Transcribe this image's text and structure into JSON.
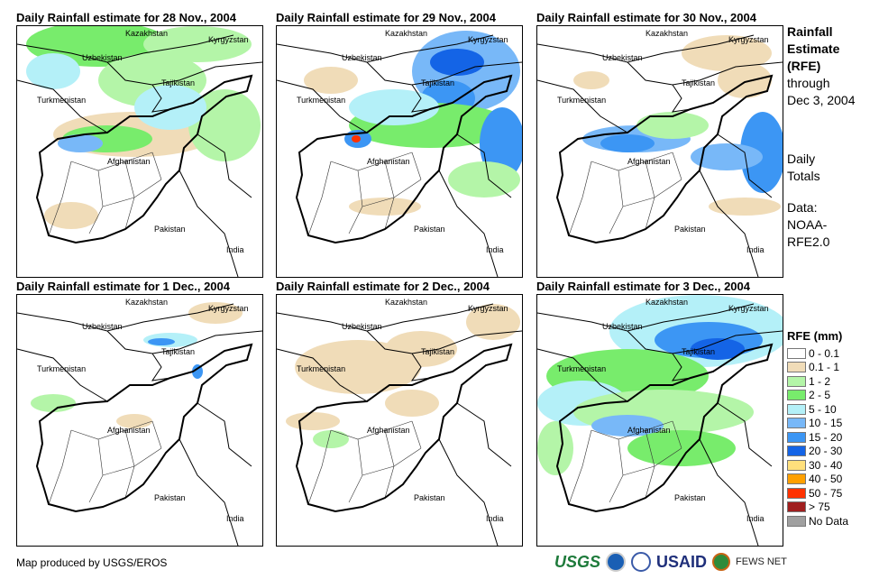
{
  "panels": [
    {
      "title": "Daily Rainfall estimate for 28 Nov., 2004"
    },
    {
      "title": "Daily Rainfall estimate for 29 Nov., 2004"
    },
    {
      "title": "Daily Rainfall estimate for 30 Nov., 2004"
    },
    {
      "title": "Daily Rainfall estimate for 1 Dec., 2004"
    },
    {
      "title": "Daily Rainfall estimate for 2 Dec., 2004"
    },
    {
      "title": "Daily Rainfall estimate for 3 Dec., 2004"
    }
  ],
  "places": {
    "kazakhstan": "Kazakhstan",
    "kyrgyzstan": "Kyrgyzstan",
    "uzbekistan": "Uzbekistan",
    "tajikistan": "Tajikistan",
    "turkmenistan": "Turkmenistan",
    "afghanistan": "Afghanistan",
    "pakistan": "Pakistan",
    "india": "India"
  },
  "side": {
    "line1": "Rainfall",
    "line2": "Estimate",
    "line3": "(RFE)",
    "line4": "through",
    "line5": "Dec 3, 2004",
    "totals1": "Daily",
    "totals2": "Totals",
    "data1": "Data:",
    "data2": "NOAA-",
    "data3": "RFE2.0"
  },
  "legend": {
    "title": "RFE (mm)",
    "items": [
      {
        "label": "0 - 0.1",
        "color": "#ffffff"
      },
      {
        "label": "0.1 - 1",
        "color": "#f0dcb8"
      },
      {
        "label": "1 - 2",
        "color": "#b4f5a8"
      },
      {
        "label": "2 - 5",
        "color": "#78ec6c"
      },
      {
        "label": "5 - 10",
        "color": "#b4f0f8"
      },
      {
        "label": "10 - 15",
        "color": "#78b8f8"
      },
      {
        "label": "15 - 20",
        "color": "#3c96f4"
      },
      {
        "label": "20 - 30",
        "color": "#1464e6"
      },
      {
        "label": "30 - 40",
        "color": "#ffe07c"
      },
      {
        "label": "40 - 50",
        "color": "#ffa000"
      },
      {
        "label": "50 - 75",
        "color": "#ff3200"
      },
      {
        "label": "> 75",
        "color": "#a01e1e"
      },
      {
        "label": "No Data",
        "color": "#a0a0a0"
      }
    ]
  },
  "footer": "Map produced by USGS/EROS",
  "logos": {
    "usgs": "USGS",
    "usaid": "USAID",
    "fews": "FEWS NET"
  }
}
